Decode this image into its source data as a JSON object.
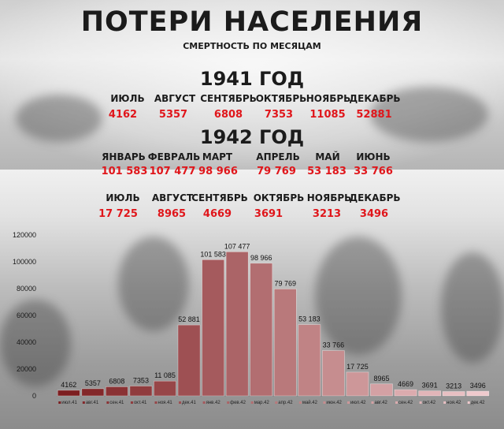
{
  "header": {
    "title": "ПОТЕРИ НАСЕЛЕНИЯ",
    "subtitle": "СМЕРТНОСТЬ ПО МЕСЯЦАМ"
  },
  "year1941": {
    "label": "1941 ГОД",
    "months": [
      "ИЮЛЬ",
      "АВГУСТ",
      "СЕНТЯБРЬ",
      "ОКТЯБРЬ",
      "НОЯБРЬ",
      "ДЕКАБРЬ"
    ],
    "values": [
      "4162",
      "5357",
      "6808",
      "7353",
      "11085",
      "52881"
    ]
  },
  "year1942": {
    "label": "1942 ГОД",
    "row1": {
      "months": [
        "ЯНВАРЬ",
        "ФЕВРАЛЬ",
        "МАРТ",
        "АПРЕЛЬ",
        "МАЙ",
        "ИЮНЬ"
      ],
      "values": [
        "101 583",
        "107 477",
        "98 966",
        "79 769",
        "53 183",
        "33 766"
      ]
    },
    "row2": {
      "months": [
        "ИЮЛЬ",
        "АВГУСТ",
        "СЕНТЯБРЬ",
        "ОКТЯБРЬ",
        "НОЯБРЬ",
        "ДЕКАБРЬ"
      ],
      "values": [
        "17 725",
        "8965",
        "4669",
        "3691",
        "3213",
        "3496"
      ]
    }
  },
  "colors": {
    "value_text": "#e0161b",
    "bar_dark": "#7c1e20",
    "bar_light": "#efc9cc"
  },
  "chart_data": {
    "type": "bar",
    "categories": [
      "июл.41",
      "авг.41",
      "сен.41",
      "окт.41",
      "ноя.41",
      "дек.41",
      "янв.42",
      "фев.42",
      "мар.42",
      "апр.42",
      "май.42",
      "июн.42",
      "июл.42",
      "авг.42",
      "сен.42",
      "окт.42",
      "ноя.42",
      "дек.42"
    ],
    "values": [
      4162,
      5357,
      6808,
      7353,
      11085,
      52881,
      101583,
      107477,
      98966,
      79769,
      53183,
      33766,
      17725,
      8965,
      4669,
      3691,
      3213,
      3496
    ],
    "data_labels": [
      "4162",
      "5357",
      "6808",
      "7353",
      "11 085",
      "52 881",
      "101 583",
      "107 477",
      "98 966",
      "79 769",
      "53 183",
      "33 766",
      "17 725",
      "8965",
      "4669",
      "3691",
      "3213",
      "3496"
    ],
    "yticks": [
      "0",
      "20000",
      "40000",
      "60000",
      "80000",
      "100000",
      "120000"
    ],
    "ylim": [
      0,
      120000
    ],
    "grid": false,
    "legend": "none"
  }
}
